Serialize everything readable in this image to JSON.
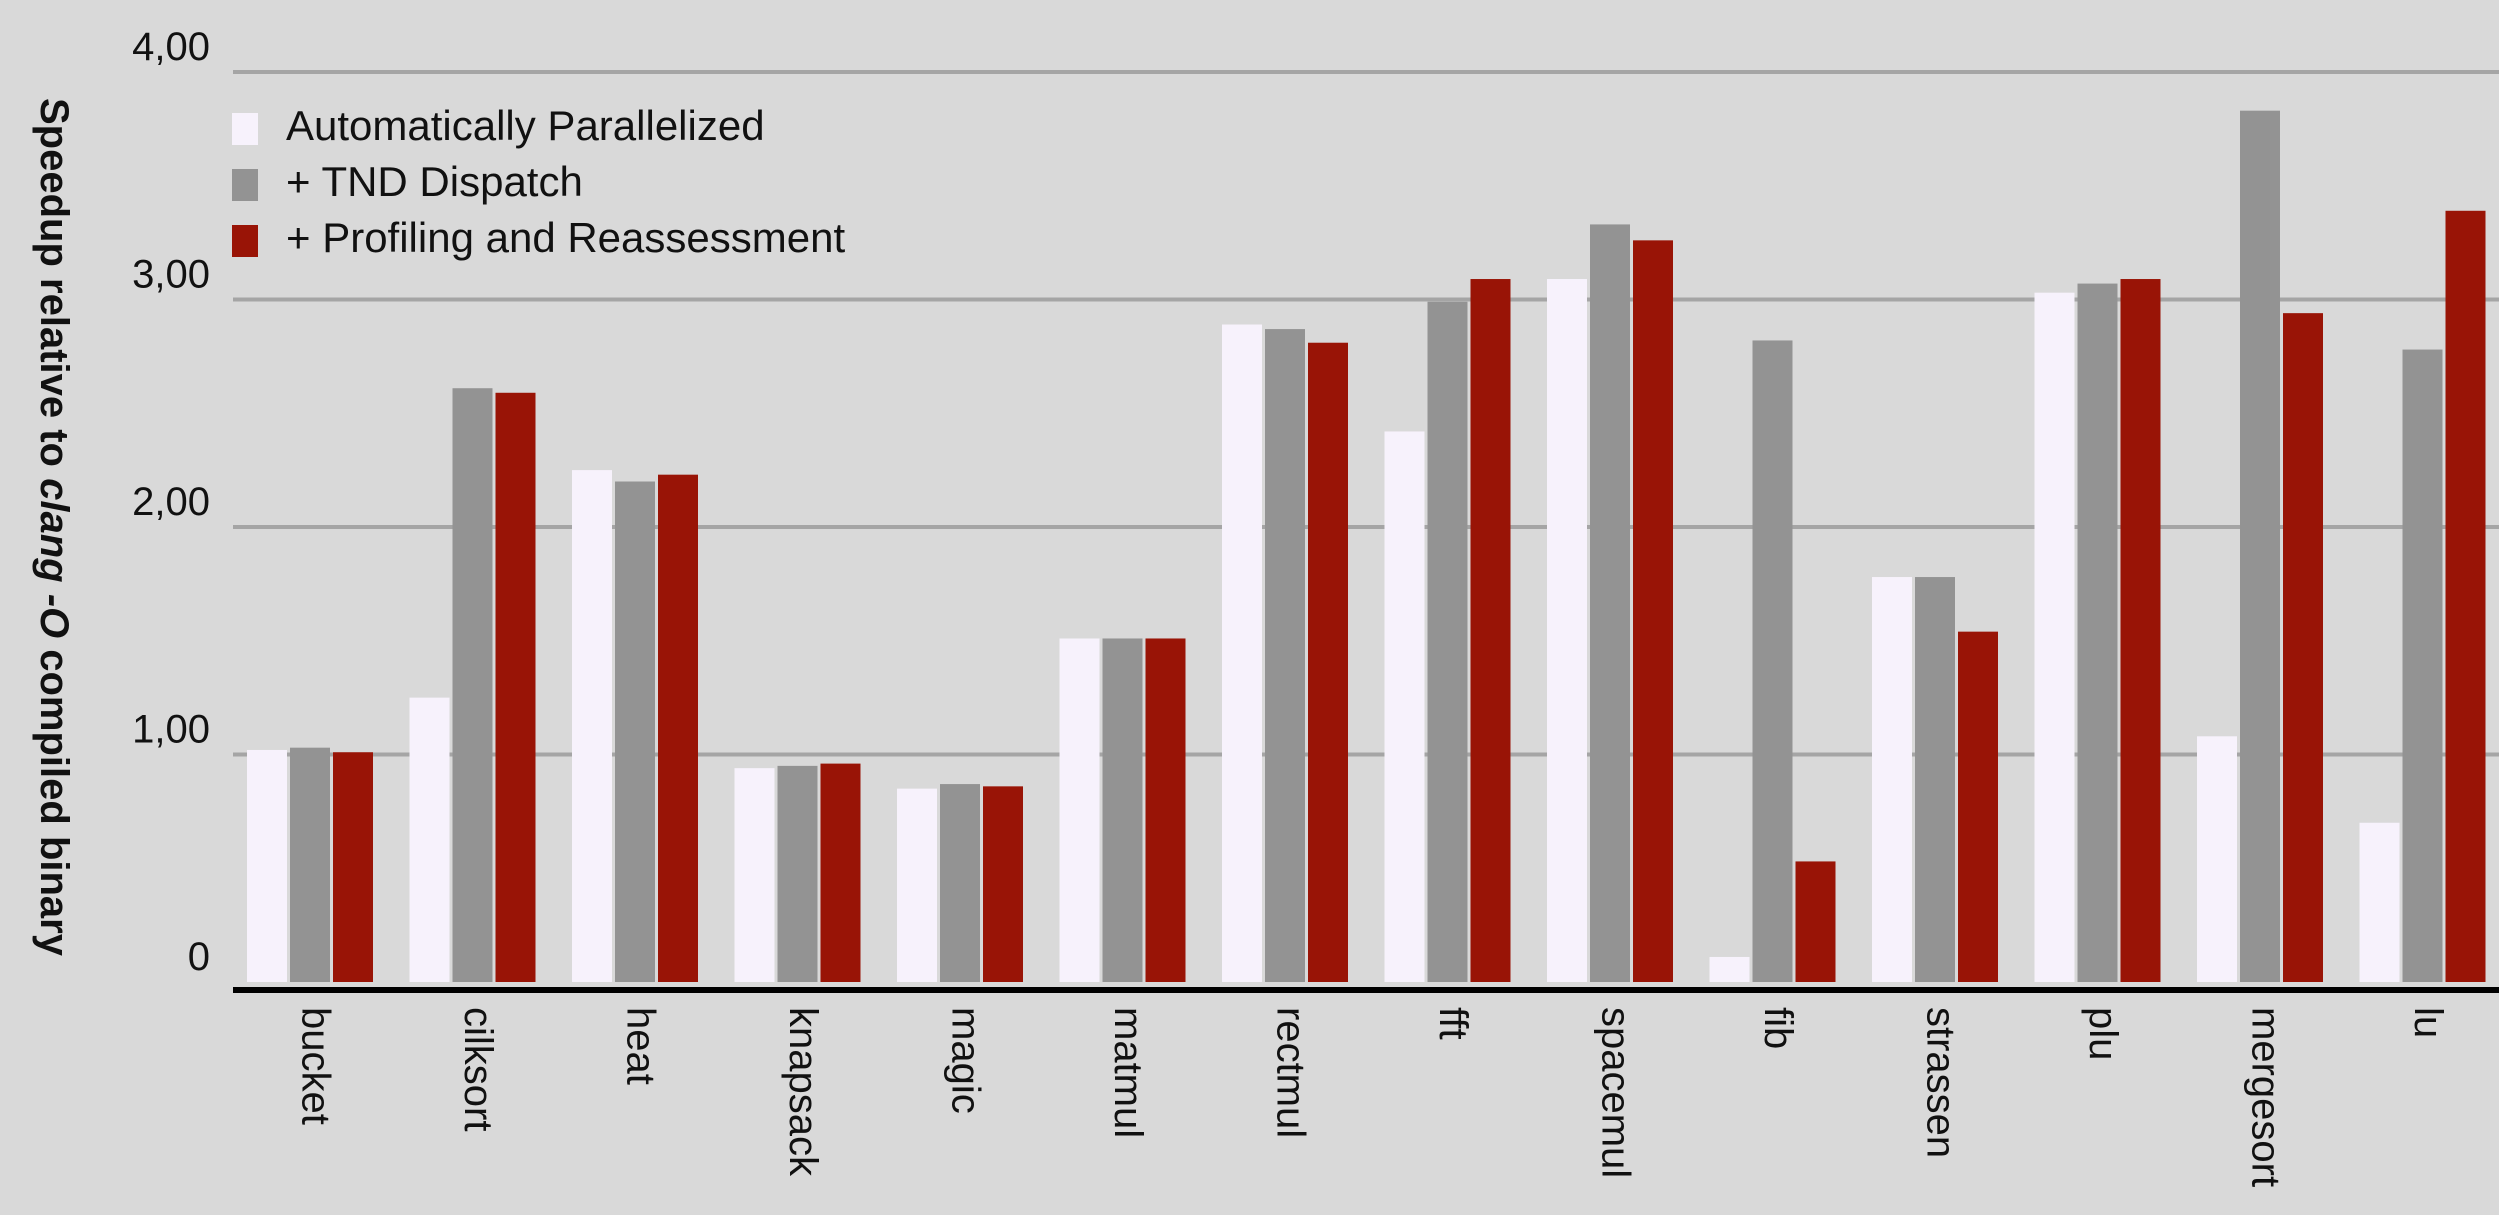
{
  "chart_data": {
    "type": "bar",
    "title": "",
    "xlabel": "",
    "ylabel": {
      "part1": "Speedup relative to ",
      "part2": "clang -O",
      "part3": " compiled binary"
    },
    "ylim": [
      0,
      4
    ],
    "yticks": [
      {
        "value": 0,
        "label": "0"
      },
      {
        "value": 1,
        "label": "1,00"
      },
      {
        "value": 2,
        "label": "2,00"
      },
      {
        "value": 3,
        "label": "3,00"
      },
      {
        "value": 4,
        "label": "4,00"
      }
    ],
    "grid": true,
    "legend_position": "top-left",
    "categories": [
      "bucket",
      "cilksort",
      "heat",
      "knapsack",
      "magic",
      "matmul",
      "rectmul",
      "fft",
      "spacemul",
      "fib",
      "strassen",
      "plu",
      "mergesort",
      "lu"
    ],
    "series": [
      {
        "name": "Automatically Parallelized",
        "color": "#f7f2fc",
        "values": [
          1.02,
          1.25,
          2.25,
          0.94,
          0.85,
          1.51,
          2.89,
          2.42,
          3.09,
          0.11,
          1.78,
          3.03,
          1.08,
          0.7
        ]
      },
      {
        "name": "+ TND Dispatch",
        "color": "#939393",
        "values": [
          1.03,
          2.61,
          2.2,
          0.95,
          0.87,
          1.51,
          2.87,
          2.99,
          3.33,
          2.82,
          1.78,
          3.07,
          3.83,
          2.78
        ]
      },
      {
        "name": "+ Profiling and Reassessment",
        "color": "#991406",
        "values": [
          1.01,
          2.59,
          2.23,
          0.96,
          0.86,
          1.51,
          2.81,
          3.09,
          3.26,
          0.53,
          1.54,
          3.09,
          2.94,
          3.39
        ]
      }
    ]
  }
}
